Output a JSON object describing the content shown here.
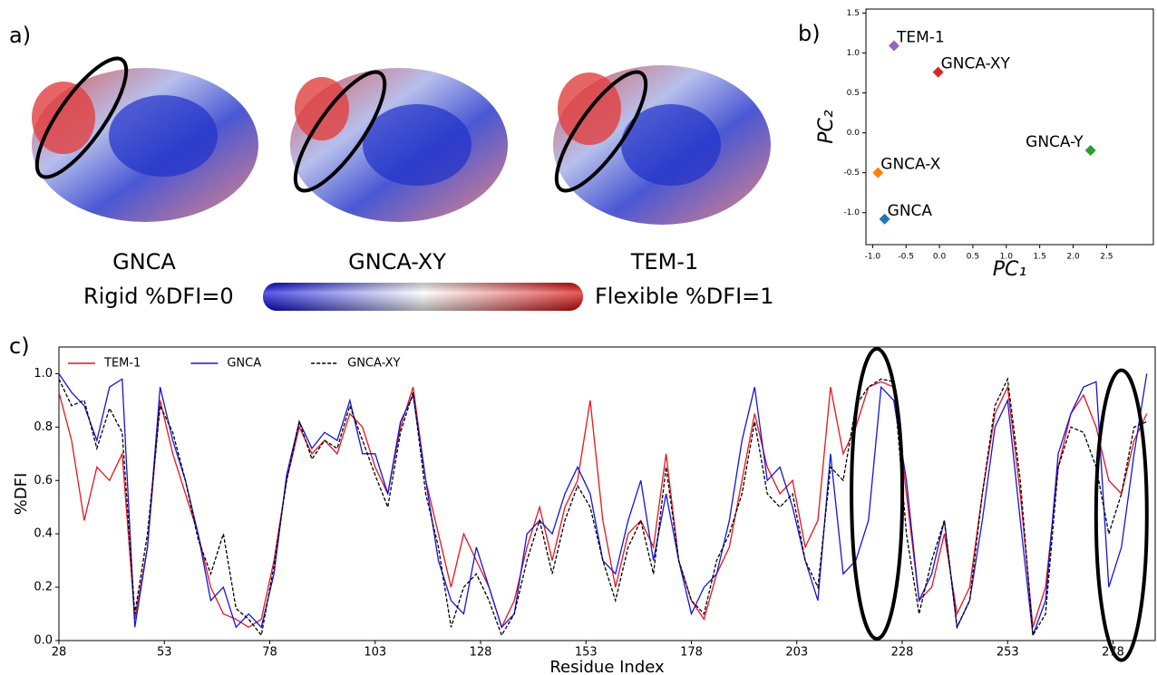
{
  "figure": {
    "panel_label": "a)",
    "structures": [
      "GNCA",
      "GNCA-XY",
      "TEM-1"
    ],
    "colorbar": {
      "min_label": "Rigid %DFI=0",
      "max_label": "Flexible %DFI=1"
    }
  },
  "chart_data": [
    {
      "type": "scatter",
      "panel_label": "b)",
      "xlabel": "PC₁",
      "ylabel": "PC₂",
      "xlim": [
        -1.1,
        3.2
      ],
      "ylim": [
        -1.4,
        1.55
      ],
      "xticks": [
        {
          "value": -1,
          "label": "-1.0"
        },
        -0.5,
        {
          "value": 0,
          "label": "0.0"
        },
        0.5,
        {
          "value": 1,
          "label": "1.0"
        },
        1.5,
        {
          "value": 2,
          "label": "2.0"
        },
        2.5
      ],
      "yticks": [
        {
          "value": -1,
          "label": "-1.0"
        },
        -0.5,
        {
          "value": 0,
          "label": "0.0"
        },
        0.5,
        {
          "value": 1,
          "label": "1.0"
        },
        1.5
      ],
      "series": [
        {
          "name": "TEM-1",
          "color": "#9467bd",
          "x": [
            -0.68
          ],
          "values": [
            1.09
          ]
        },
        {
          "name": "GNCA-XY",
          "color": "#d62728",
          "x": [
            -0.02
          ],
          "values": [
            0.76
          ]
        },
        {
          "name": "GNCA-Y",
          "color": "#2ca02c",
          "x": [
            2.26
          ],
          "values": [
            -0.22
          ]
        },
        {
          "name": "GNCA-X",
          "color": "#ff7f0e",
          "x": [
            -0.92
          ],
          "values": [
            -0.5
          ]
        },
        {
          "name": "GNCA",
          "color": "#1f77b4",
          "x": [
            -0.82
          ],
          "values": [
            -1.08
          ]
        }
      ]
    },
    {
      "type": "line",
      "panel_label": "c)",
      "xlabel": "Residue Index",
      "ylabel": "%DFI",
      "xlim": [
        28,
        288
      ],
      "ylim": [
        0,
        1.1
      ],
      "xticks": [
        28,
        53,
        78,
        103,
        128,
        153,
        178,
        203,
        228,
        253,
        278
      ],
      "yticks": [
        {
          "value": 0,
          "label": "0.0"
        },
        0.2,
        0.4,
        0.6,
        0.8,
        {
          "value": 1,
          "label": "1.0"
        }
      ],
      "legend": "upper left",
      "x": [
        28,
        31,
        34,
        37,
        40,
        43,
        46,
        49,
        52,
        55,
        58,
        61,
        64,
        67,
        70,
        73,
        76,
        79,
        82,
        85,
        88,
        91,
        94,
        97,
        100,
        103,
        106,
        109,
        112,
        115,
        118,
        121,
        124,
        127,
        130,
        133,
        136,
        139,
        142,
        145,
        148,
        151,
        154,
        157,
        160,
        163,
        166,
        169,
        172,
        175,
        178,
        181,
        184,
        187,
        190,
        193,
        196,
        199,
        202,
        205,
        208,
        211,
        214,
        217,
        220,
        223,
        226,
        229,
        232,
        235,
        238,
        241,
        244,
        247,
        250,
        253,
        256,
        259,
        262,
        265,
        268,
        271,
        274,
        277,
        280,
        283,
        286
      ],
      "series": [
        {
          "name": "TEM-1",
          "color": "#e8141c",
          "linestyle": "solid",
          "values": [
            0.93,
            0.75,
            0.45,
            0.65,
            0.6,
            0.7,
            0.08,
            0.35,
            0.9,
            0.7,
            0.55,
            0.4,
            0.2,
            0.1,
            0.08,
            0.05,
            0.08,
            0.3,
            0.6,
            0.8,
            0.7,
            0.75,
            0.7,
            0.85,
            0.8,
            0.65,
            0.55,
            0.8,
            0.95,
            0.6,
            0.4,
            0.2,
            0.4,
            0.3,
            0.2,
            0.05,
            0.15,
            0.35,
            0.5,
            0.3,
            0.5,
            0.6,
            0.9,
            0.45,
            0.2,
            0.4,
            0.45,
            0.35,
            0.7,
            0.3,
            0.15,
            0.08,
            0.25,
            0.35,
            0.6,
            0.85,
            0.65,
            0.55,
            0.6,
            0.35,
            0.45,
            0.95,
            0.7,
            0.8,
            0.95,
            0.97,
            0.95,
            0.55,
            0.15,
            0.2,
            0.4,
            0.1,
            0.2,
            0.55,
            0.85,
            0.95,
            0.55,
            0.05,
            0.2,
            0.65,
            0.85,
            0.92,
            0.8,
            0.6,
            0.55,
            0.75,
            0.85
          ]
        },
        {
          "name": "GNCA",
          "color": "#1414e0",
          "linestyle": "solid",
          "values": [
            1.0,
            0.93,
            0.88,
            0.75,
            0.95,
            0.98,
            0.05,
            0.35,
            0.95,
            0.75,
            0.6,
            0.4,
            0.15,
            0.2,
            0.05,
            0.1,
            0.05,
            0.25,
            0.62,
            0.82,
            0.72,
            0.78,
            0.75,
            0.9,
            0.7,
            0.7,
            0.55,
            0.82,
            0.92,
            0.6,
            0.3,
            0.15,
            0.1,
            0.35,
            0.2,
            0.05,
            0.1,
            0.4,
            0.45,
            0.4,
            0.55,
            0.65,
            0.55,
            0.3,
            0.25,
            0.45,
            0.6,
            0.3,
            0.55,
            0.3,
            0.1,
            0.2,
            0.25,
            0.45,
            0.75,
            0.95,
            0.6,
            0.65,
            0.5,
            0.3,
            0.15,
            0.7,
            0.25,
            0.3,
            0.45,
            0.95,
            0.9,
            0.6,
            0.15,
            0.25,
            0.45,
            0.05,
            0.15,
            0.45,
            0.8,
            0.9,
            0.45,
            0.02,
            0.15,
            0.7,
            0.85,
            0.95,
            0.97,
            0.2,
            0.35,
            0.7,
            1.0
          ]
        },
        {
          "name": "GNCA-XY",
          "color": "#000000",
          "linestyle": "dashed",
          "values": [
            0.98,
            0.88,
            0.9,
            0.72,
            0.87,
            0.78,
            0.1,
            0.4,
            0.88,
            0.78,
            0.6,
            0.38,
            0.25,
            0.4,
            0.12,
            0.08,
            0.02,
            0.28,
            0.6,
            0.82,
            0.68,
            0.75,
            0.72,
            0.88,
            0.75,
            0.62,
            0.5,
            0.78,
            0.93,
            0.55,
            0.35,
            0.05,
            0.2,
            0.25,
            0.15,
            0.02,
            0.1,
            0.3,
            0.45,
            0.25,
            0.45,
            0.58,
            0.5,
            0.3,
            0.15,
            0.35,
            0.45,
            0.25,
            0.65,
            0.3,
            0.15,
            0.1,
            0.3,
            0.4,
            0.55,
            0.82,
            0.55,
            0.5,
            0.55,
            0.3,
            0.2,
            0.65,
            0.6,
            0.88,
            0.95,
            0.98,
            0.97,
            0.4,
            0.1,
            0.3,
            0.45,
            0.05,
            0.15,
            0.55,
            0.88,
            0.98,
            0.6,
            0.02,
            0.1,
            0.65,
            0.8,
            0.78,
            0.65,
            0.4,
            0.55,
            0.8,
            0.82
          ]
        }
      ]
    }
  ]
}
